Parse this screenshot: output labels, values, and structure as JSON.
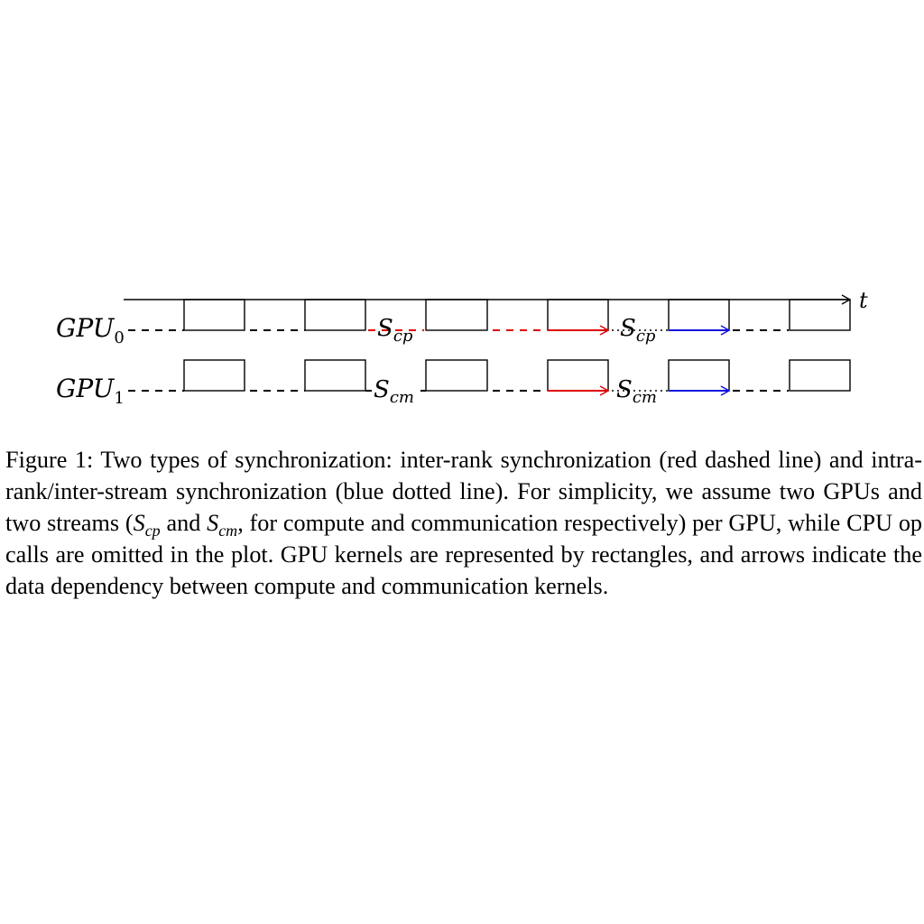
{
  "figure": {
    "axis_label": "t",
    "rows": [
      {
        "name": "GPU",
        "subscript": "0",
        "stream": "S",
        "stream_sub": "cp"
      },
      {
        "name": "GPU",
        "subscript": "1",
        "stream": "S",
        "stream_sub": "cm"
      }
    ],
    "colors": {
      "inter_rank": "#e00000",
      "intra_rank": "#1010e0",
      "line": "#000000"
    }
  },
  "caption": {
    "prefix": "Figure 1: Two types of synchronization: inter-rank synchronization (red dashed line) and intra-rank/inter-stream synchronization (blue dotted line). For simplicity, we assume two GPUs and two streams (",
    "s1": "S",
    "s1_sub": "cp",
    "and_word": " and ",
    "s2": "S",
    "s2_sub": "cm",
    "suffix": ", for compute and communication respectively) per GPU, while CPU op calls are omitted in the plot. GPU kernels are represented by rectangles, and arrows indicate the data dependency between compute and communication kernels."
  }
}
